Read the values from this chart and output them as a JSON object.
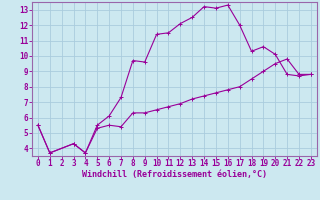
{
  "xlabel": "Windchill (Refroidissement éolien,°C)",
  "bg_color": "#cce8f0",
  "grid_color": "#aaccdd",
  "line_color": "#990099",
  "spine_color": "#9966aa",
  "xlim": [
    -0.5,
    23.5
  ],
  "ylim": [
    3.5,
    13.5
  ],
  "xticks": [
    0,
    1,
    2,
    3,
    4,
    5,
    6,
    7,
    8,
    9,
    10,
    11,
    12,
    13,
    14,
    15,
    16,
    17,
    18,
    19,
    20,
    21,
    22,
    23
  ],
  "yticks": [
    4,
    5,
    6,
    7,
    8,
    9,
    10,
    11,
    12,
    13
  ],
  "series1_x": [
    0,
    1,
    3,
    4,
    5,
    6,
    7,
    8,
    9,
    10,
    11,
    12,
    13,
    14,
    15,
    16,
    17,
    18,
    19,
    20,
    21,
    22,
    23
  ],
  "series1_y": [
    5.5,
    3.7,
    4.3,
    3.7,
    5.5,
    6.1,
    7.3,
    9.7,
    9.6,
    11.4,
    11.5,
    12.1,
    12.5,
    13.2,
    13.1,
    13.3,
    12.0,
    10.3,
    10.6,
    10.1,
    8.8,
    8.7,
    8.8
  ],
  "series2_x": [
    0,
    1,
    3,
    4,
    5,
    6,
    7,
    8,
    9,
    10,
    11,
    12,
    13,
    14,
    15,
    16,
    17,
    18,
    19,
    20,
    21,
    22,
    23
  ],
  "series2_y": [
    5.5,
    3.7,
    4.3,
    3.7,
    5.3,
    5.5,
    5.4,
    6.3,
    6.3,
    6.5,
    6.7,
    6.9,
    7.2,
    7.4,
    7.6,
    7.8,
    8.0,
    8.5,
    9.0,
    9.5,
    9.8,
    8.8,
    8.8
  ],
  "tick_fontsize": 5.5,
  "xlabel_fontsize": 6.0,
  "lw": 0.8,
  "marker_size": 2.5
}
